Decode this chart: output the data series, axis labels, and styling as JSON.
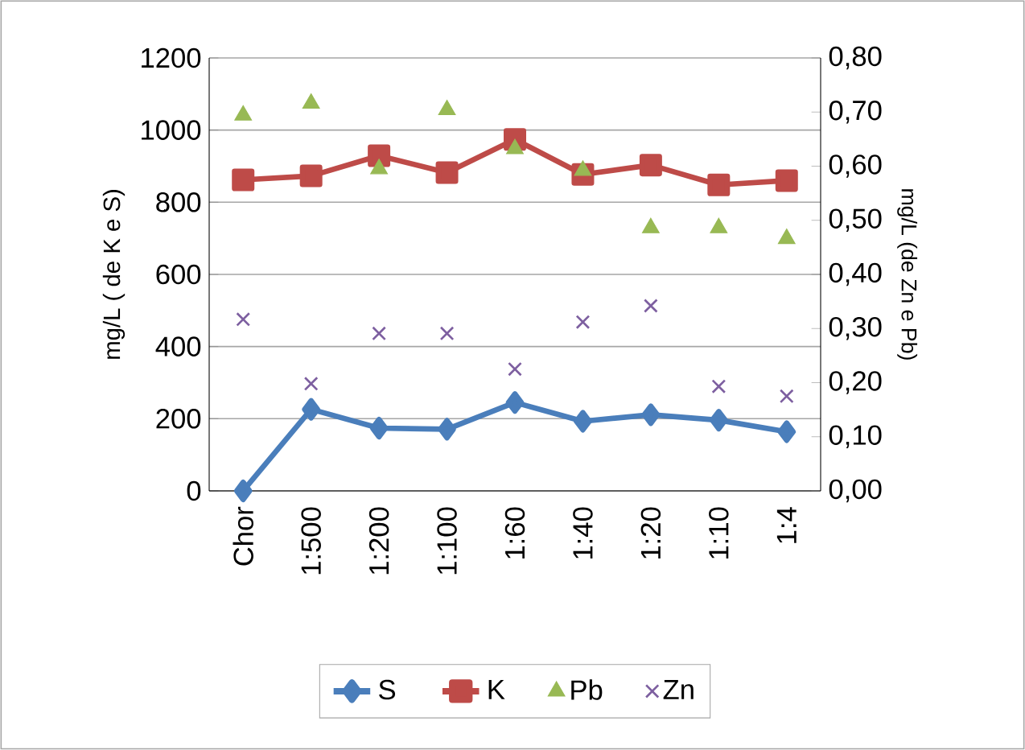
{
  "chart_data": {
    "type": "line",
    "categories": [
      "Chor",
      "1:500",
      "1:200",
      "1:100",
      "1:60",
      "1:40",
      "1:20",
      "1:10",
      "1:4"
    ],
    "ylabel": "mg/L ( de K e S)",
    "y2label": "mg/L (de Zn e Pb)",
    "ylim": [
      0,
      1200
    ],
    "yticks": [
      0,
      200,
      400,
      600,
      800,
      1000,
      1200
    ],
    "y2lim": [
      0,
      0.8
    ],
    "y2ticks": [
      {
        "value": 0,
        "label": "0,00"
      },
      {
        "value": 0.1,
        "label": "0,10"
      },
      {
        "value": 0.2,
        "label": "0,20"
      },
      {
        "value": 0.3,
        "label": "0,30"
      },
      {
        "value": 0.4,
        "label": "0,40"
      },
      {
        "value": 0.5,
        "label": "0,50"
      },
      {
        "value": 0.6,
        "label": "0,60"
      },
      {
        "value": 0.7,
        "label": "0,70"
      },
      {
        "value": 0.8,
        "label": "0,80"
      }
    ],
    "grid": "y",
    "legend": "bottom",
    "series": [
      {
        "name": "S",
        "marker": "diamond",
        "color": "#4a7ebb",
        "values": [
          0,
          226,
          174,
          171,
          245,
          193,
          211,
          196,
          164
        ]
      },
      {
        "name": "K",
        "marker": "square",
        "color": "#be4b48",
        "values": [
          862,
          873,
          929,
          882,
          974,
          877,
          903,
          848,
          860
        ]
      },
      {
        "name": "Pb",
        "type": "scatter",
        "marker": "triangle",
        "axis": "y2",
        "color": "#98b954",
        "values": [
          0.694,
          0.716,
          0.595,
          0.704,
          0.632,
          0.592,
          0.486,
          0.486,
          0.466
        ]
      },
      {
        "name": "Zn",
        "type": "scatter",
        "marker": "cross",
        "axis": "y2",
        "color": "#7d5fa0",
        "values": [
          0.317,
          0.198,
          0.291,
          0.291,
          0.225,
          0.312,
          0.342,
          0.193,
          0.175
        ]
      }
    ]
  }
}
